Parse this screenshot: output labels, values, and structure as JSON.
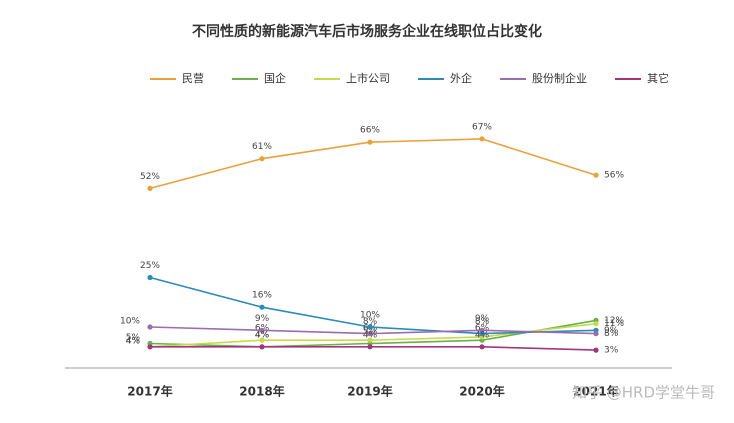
{
  "chart_data": {
    "type": "line",
    "title": "不同性质的新能源汽车后市场服务企业在线职位占比变化",
    "categories": [
      "2017年",
      "2018年",
      "2019年",
      "2020年",
      "2021年"
    ],
    "series": [
      {
        "name": "民营",
        "color": "#e9a23b",
        "values": [
          52,
          61,
          66,
          67,
          56
        ],
        "value_labels": [
          "52%",
          "61%",
          "66%",
          "67%",
          "56%"
        ]
      },
      {
        "name": "国企",
        "color": "#68b04a",
        "values": [
          5,
          4,
          5,
          6,
          12
        ],
        "value_labels": [
          "5%",
          "4%",
          "5%",
          "6%",
          "12%"
        ]
      },
      {
        "name": "上市公司",
        "color": "#c9d94b",
        "values": [
          4,
          6,
          6,
          7,
          11
        ],
        "value_labels": [
          "4%",
          "6%",
          "6%",
          null,
          "11%"
        ]
      },
      {
        "name": "外企",
        "color": "#2a8bb8",
        "values": [
          25,
          16,
          10,
          8,
          9
        ],
        "value_labels": [
          "25%",
          "16%",
          "10%",
          "8%",
          "9%"
        ]
      },
      {
        "name": "股份制企业",
        "color": "#9a6db0",
        "values": [
          10,
          9,
          8,
          9,
          8
        ],
        "value_labels": [
          "10%",
          "9%",
          "8%",
          "9%",
          "8%"
        ]
      },
      {
        "name": "其它",
        "color": "#a3357f",
        "values": [
          4,
          4,
          4,
          4,
          3
        ],
        "value_labels": [
          "4%",
          "4%",
          "4%",
          "4%",
          "3%"
        ]
      }
    ],
    "watermark": "知乎 @HRD学堂牛哥"
  }
}
